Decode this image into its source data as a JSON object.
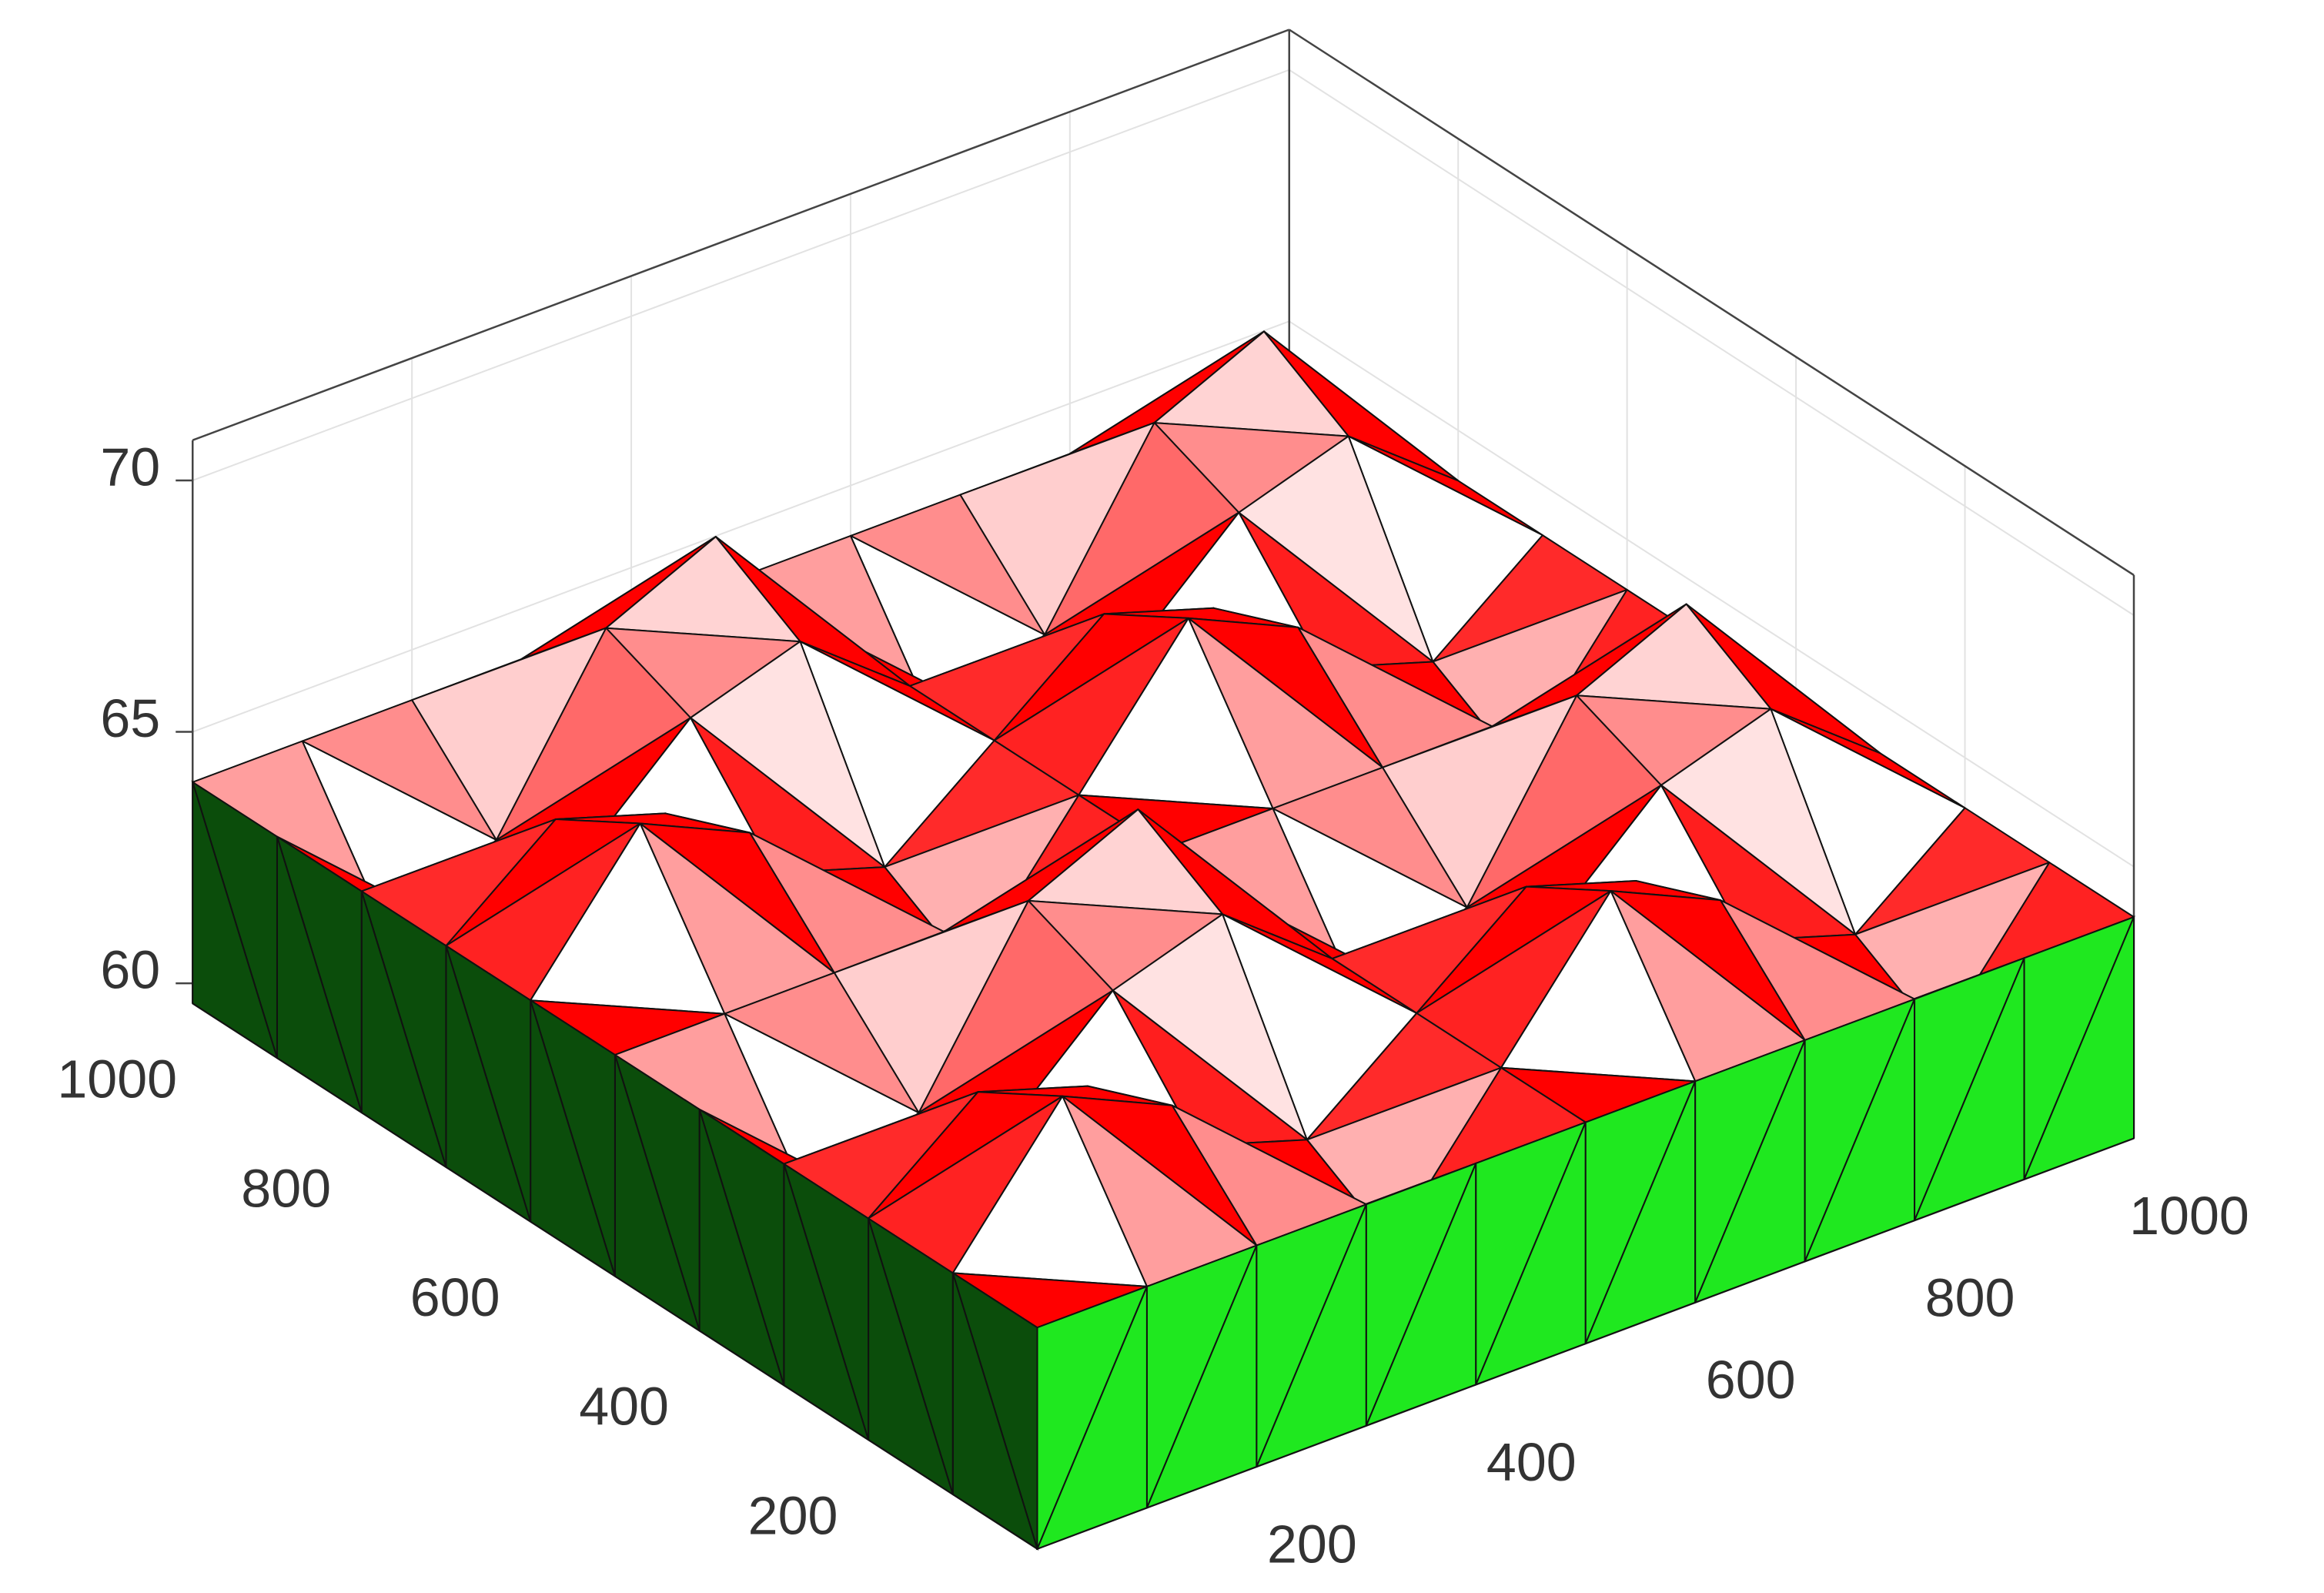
{
  "chart_data": {
    "type": "surface",
    "x": [
      0,
      100,
      200,
      300,
      400,
      500,
      600,
      700,
      800,
      900,
      1000
    ],
    "y": [
      0,
      100,
      200,
      300,
      400,
      500,
      600,
      700,
      800,
      900,
      1000
    ],
    "z": [
      [
        64,
        64,
        64,
        64,
        64,
        64,
        64,
        64,
        64,
        64,
        64
      ],
      [
        64,
        66.7,
        65.7,
        62.3,
        61.3,
        64,
        66.7,
        65.7,
        62.3,
        61.3,
        64
      ],
      [
        64,
        65.7,
        65.0,
        63.0,
        62.3,
        64,
        65.7,
        65.0,
        63.0,
        62.3,
        64
      ],
      [
        64,
        62.3,
        63.0,
        65.0,
        65.7,
        64,
        62.3,
        63.0,
        65.0,
        65.7,
        64
      ],
      [
        64,
        61.3,
        62.3,
        65.7,
        66.7,
        64,
        61.3,
        62.3,
        65.7,
        66.7,
        64
      ],
      [
        64,
        64,
        64,
        64,
        64,
        64,
        64,
        64,
        64,
        64,
        64
      ],
      [
        64,
        66.7,
        65.7,
        62.3,
        61.3,
        64,
        66.7,
        65.7,
        62.3,
        61.3,
        64
      ],
      [
        64,
        65.7,
        65.0,
        63.0,
        62.3,
        64,
        65.7,
        65.0,
        63.0,
        62.3,
        64
      ],
      [
        64,
        62.3,
        63.0,
        65.0,
        65.7,
        64,
        62.3,
        63.0,
        65.0,
        65.7,
        64
      ],
      [
        64,
        61.3,
        62.3,
        65.7,
        66.7,
        64,
        61.3,
        62.3,
        65.7,
        66.7,
        64
      ],
      [
        64,
        64,
        64,
        64,
        64,
        64,
        64,
        64,
        64,
        64,
        64
      ]
    ],
    "xlim": [
      0,
      1000
    ],
    "ylim": [
      0,
      1000
    ],
    "zlim": [
      59.6,
      70.8
    ],
    "xticks": [
      200,
      400,
      600,
      800,
      1000
    ],
    "yticks": [
      200,
      400,
      600,
      800,
      1000
    ],
    "zticks": [
      60,
      65,
      70
    ],
    "grid": true,
    "color": "#ff0000",
    "side_colors": [
      "#0b4d0b",
      "#1fe81f"
    ]
  }
}
